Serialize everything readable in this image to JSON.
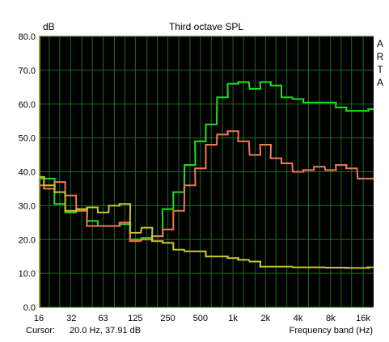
{
  "chart_data": {
    "type": "line",
    "title": "Third octave SPL",
    "ylabel": "dB",
    "xlabel": "Frequency band (Hz)",
    "watermark": "ARTA",
    "x_scale": "log",
    "xlim": [
      16,
      20000
    ],
    "ylim": [
      0,
      80
    ],
    "grid": true,
    "y_ticks": [
      "0.0",
      "10.0",
      "20.0",
      "30.0",
      "40.0",
      "50.0",
      "60.0",
      "70.0",
      "80.0"
    ],
    "x_ticks": [
      {
        "label": "16",
        "value": 16
      },
      {
        "label": "32",
        "value": 32
      },
      {
        "label": "63",
        "value": 63
      },
      {
        "label": "125",
        "value": 125
      },
      {
        "label": "250",
        "value": 250
      },
      {
        "label": "500",
        "value": 500
      },
      {
        "label": "1k",
        "value": 1000
      },
      {
        "label": "2k",
        "value": 2000
      },
      {
        "label": "4k",
        "value": 4000
      },
      {
        "label": "8k",
        "value": 8000
      },
      {
        "label": "16k",
        "value": 16000
      }
    ],
    "x": [
      16,
      20,
      25,
      31.5,
      40,
      50,
      63,
      80,
      100,
      125,
      160,
      200,
      250,
      315,
      400,
      500,
      630,
      800,
      1000,
      1250,
      1600,
      2000,
      2500,
      3150,
      4000,
      5000,
      6300,
      8000,
      10000,
      12500,
      16000,
      20000
    ],
    "series": [
      {
        "color": "#22dd22",
        "values": [
          38,
          38,
          30.5,
          28,
          29,
          25.5,
          24,
          24,
          24.5,
          20,
          20.5,
          21,
          29,
          34,
          42,
          49,
          54,
          62,
          66,
          66.5,
          64.5,
          66.5,
          65.5,
          62,
          61.5,
          60.5,
          60.5,
          60.5,
          59,
          58,
          58,
          58.5
        ]
      },
      {
        "color": "#f07858",
        "values": [
          36,
          35,
          37,
          33,
          28.5,
          24,
          24,
          24,
          25,
          19.5,
          20,
          21,
          23,
          28.5,
          36,
          41,
          48,
          51,
          52,
          49,
          45,
          48,
          44,
          42.5,
          40,
          40.5,
          41.5,
          40.5,
          42,
          41,
          38,
          38
        ]
      },
      {
        "color": "#c8c830",
        "values": [
          38.5,
          36,
          34,
          28.5,
          29,
          29.5,
          28,
          30,
          30.5,
          22,
          23.5,
          19.5,
          19,
          17,
          16.5,
          16.5,
          15,
          15,
          14.5,
          14,
          13.5,
          12,
          12,
          12,
          11.8,
          11.8,
          11.8,
          11.7,
          11.7,
          11.6,
          11.6,
          11.8
        ]
      }
    ]
  },
  "status": {
    "cursor_label": "Cursor:",
    "cursor_value": "20.0 Hz, 37.91 dB"
  }
}
